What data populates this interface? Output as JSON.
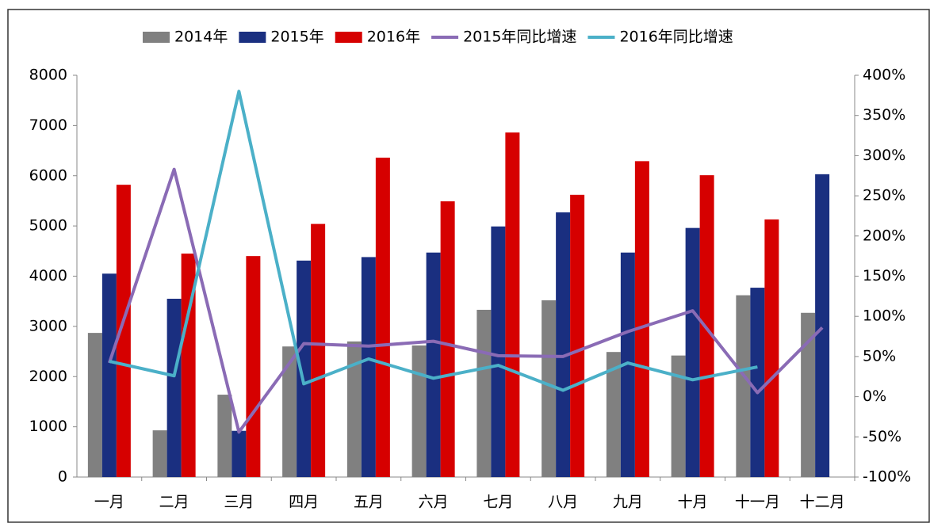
{
  "chart_data": {
    "type": "bar",
    "categories": [
      "一月",
      "二月",
      "三月",
      "四月",
      "五月",
      "六月",
      "七月",
      "八月",
      "九月",
      "十月",
      "十一月",
      "十二月"
    ],
    "series": [
      {
        "name": "2014年",
        "color": "#808080",
        "values": [
          2870,
          930,
          1640,
          2600,
          2700,
          2620,
          3330,
          3520,
          2490,
          2420,
          3620,
          3270
        ]
      },
      {
        "name": "2015年",
        "color": "#1a2f80",
        "values": [
          4050,
          3550,
          920,
          4310,
          4380,
          4470,
          4990,
          5270,
          4470,
          4960,
          3770,
          6030
        ]
      },
      {
        "name": "2016年",
        "color": "#d60000",
        "values": [
          5820,
          4450,
          4400,
          5040,
          6360,
          5490,
          6860,
          5620,
          6290,
          6010,
          5130,
          null
        ]
      },
      {
        "name": "2015年同比增速",
        "color": "#8a6bb5",
        "axis": "y2",
        "values": [
          42,
          283,
          -44,
          66,
          63,
          69,
          51,
          50,
          81,
          107,
          5,
          86
        ]
      },
      {
        "name": "2016年同比增速",
        "color": "#4bb0c8",
        "axis": "y2",
        "values": [
          44,
          26,
          380,
          16,
          47,
          23,
          39,
          8,
          42,
          21,
          37,
          null
        ]
      }
    ],
    "ylim": [
      0,
      8000
    ],
    "yticks": [
      0,
      1000,
      2000,
      3000,
      4000,
      5000,
      6000,
      7000,
      8000
    ],
    "y2lim": [
      -100,
      400
    ],
    "y2ticks": [
      {
        "value": -100,
        "label": "-100%"
      },
      {
        "value": -50,
        "label": "-50%"
      },
      {
        "value": 0,
        "label": "0%"
      },
      {
        "value": 50,
        "label": "50%"
      },
      {
        "value": 100,
        "label": "100%"
      },
      {
        "value": 150,
        "label": "150%"
      },
      {
        "value": 200,
        "label": "200%"
      },
      {
        "value": 250,
        "label": "250%"
      },
      {
        "value": 300,
        "label": "300%"
      },
      {
        "value": 350,
        "label": "350%"
      },
      {
        "value": 400,
        "label": "400%"
      }
    ],
    "grid": false,
    "legend": "top"
  }
}
